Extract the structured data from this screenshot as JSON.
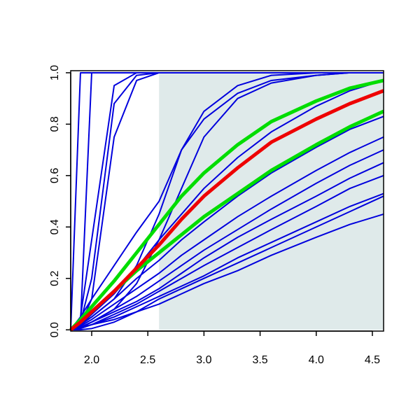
{
  "chart_data": {
    "type": "line",
    "x": [
      1.813,
      1.9,
      2.0,
      2.2,
      2.4,
      2.6,
      2.8,
      3.0,
      3.3,
      3.6,
      4.0,
      4.3,
      4.6
    ],
    "xlim": [
      1.813,
      4.6
    ],
    "ylim": [
      -0.005,
      1.008
    ],
    "xticks": [
      {
        "value": 2,
        "label": "2.0"
      },
      2.5,
      {
        "value": 3,
        "label": "3.0"
      },
      3.5,
      {
        "value": 4,
        "label": "4.0"
      },
      4.5
    ],
    "yticks": [
      {
        "value": 0,
        "label": "0.0"
      },
      0.2,
      0.4,
      0.6,
      0.8,
      {
        "value": 1,
        "label": "1.0"
      }
    ],
    "shaded_region": {
      "x": [
        2.6,
        4.6
      ],
      "y": [
        0,
        1
      ],
      "color": "#dfeaea"
    },
    "series": [
      {
        "color": "#0000dd",
        "width": 2,
        "values": [
          0,
          1,
          1,
          1,
          1,
          1,
          1,
          1,
          1,
          1,
          1,
          1,
          1
        ]
      },
      {
        "color": "#0000dd",
        "width": 2,
        "values": [
          0,
          0.02,
          1,
          1,
          1,
          1,
          1,
          1,
          1,
          1,
          1,
          1,
          1
        ]
      },
      {
        "color": "#0000dd",
        "width": 2,
        "values": [
          0,
          0.05,
          0.35,
          0.95,
          1,
          1,
          1,
          1,
          1,
          1,
          1,
          1,
          1
        ]
      },
      {
        "color": "#0000dd",
        "width": 2,
        "values": [
          0,
          0.03,
          0.2,
          0.88,
          0.99,
          1,
          1,
          1,
          1,
          1,
          1,
          1,
          1
        ]
      },
      {
        "color": "#0000dd",
        "width": 2,
        "values": [
          0,
          0.02,
          0.12,
          0.75,
          0.97,
          1,
          1,
          1,
          1,
          1,
          1,
          1,
          1
        ]
      },
      {
        "color": "#0000dd",
        "width": 2,
        "values": [
          0,
          0.02,
          0.05,
          0.12,
          0.25,
          0.45,
          0.7,
          0.85,
          0.95,
          0.99,
          1,
          1,
          1
        ]
      },
      {
        "color": "#0000dd",
        "width": 2,
        "values": [
          0,
          0.01,
          0.03,
          0.08,
          0.18,
          0.35,
          0.55,
          0.75,
          0.9,
          0.96,
          0.99,
          1,
          1
        ]
      },
      {
        "color": "#0000dd",
        "width": 2,
        "values": [
          0,
          0.05,
          0.12,
          0.25,
          0.38,
          0.5,
          0.7,
          0.82,
          0.92,
          0.97,
          0.99,
          1,
          1
        ]
      },
      {
        "color": "#0000dd",
        "width": 2,
        "values": [
          0,
          0.02,
          0.06,
          0.14,
          0.24,
          0.35,
          0.45,
          0.55,
          0.67,
          0.77,
          0.87,
          0.93,
          0.97
        ]
      },
      {
        "color": "#0000dd",
        "width": 2,
        "values": [
          0,
          0.02,
          0.05,
          0.12,
          0.2,
          0.27,
          0.35,
          0.42,
          0.52,
          0.61,
          0.71,
          0.78,
          0.83
        ]
      },
      {
        "color": "#0000dd",
        "width": 2,
        "values": [
          0,
          0.015,
          0.04,
          0.1,
          0.16,
          0.22,
          0.29,
          0.35,
          0.44,
          0.52,
          0.62,
          0.69,
          0.75
        ]
      },
      {
        "color": "#0000dd",
        "width": 2,
        "values": [
          0,
          0.01,
          0.03,
          0.08,
          0.13,
          0.19,
          0.25,
          0.31,
          0.39,
          0.47,
          0.57,
          0.64,
          0.7
        ]
      },
      {
        "color": "#0000dd",
        "width": 2,
        "values": [
          0,
          0.01,
          0.03,
          0.07,
          0.11,
          0.16,
          0.22,
          0.28,
          0.36,
          0.43,
          0.52,
          0.59,
          0.65
        ]
      },
      {
        "color": "#0000dd",
        "width": 2,
        "values": [
          0,
          0.01,
          0.02,
          0.06,
          0.1,
          0.15,
          0.2,
          0.25,
          0.32,
          0.39,
          0.48,
          0.55,
          0.6
        ]
      },
      {
        "color": "#0000dd",
        "width": 2,
        "values": [
          0,
          0.01,
          0.02,
          0.05,
          0.09,
          0.13,
          0.17,
          0.21,
          0.28,
          0.34,
          0.42,
          0.48,
          0.53
        ]
      },
      {
        "color": "#0000dd",
        "width": 2,
        "values": [
          0,
          0.005,
          0.02,
          0.04,
          0.07,
          0.1,
          0.14,
          0.18,
          0.23,
          0.29,
          0.36,
          0.41,
          0.45
        ]
      },
      {
        "color": "#0000dd",
        "width": 2,
        "values": [
          0,
          0,
          0.005,
          0.03,
          0.07,
          0.12,
          0.16,
          0.2,
          0.26,
          0.32,
          0.4,
          0.46,
          0.52
        ]
      },
      {
        "color": "#00dd00",
        "width": 5,
        "values": [
          0,
          0.04,
          0.09,
          0.19,
          0.3,
          0.41,
          0.52,
          0.61,
          0.72,
          0.81,
          0.89,
          0.94,
          0.97
        ]
      },
      {
        "color": "#00dd00",
        "width": 5,
        "values": [
          0,
          0.03,
          0.07,
          0.15,
          0.23,
          0.3,
          0.37,
          0.44,
          0.53,
          0.62,
          0.72,
          0.79,
          0.85
        ]
      },
      {
        "color": "#ee0000",
        "width": 5,
        "values": [
          0,
          0.03,
          0.07,
          0.15,
          0.24,
          0.33,
          0.43,
          0.52,
          0.63,
          0.73,
          0.82,
          0.88,
          0.93
        ]
      }
    ]
  }
}
